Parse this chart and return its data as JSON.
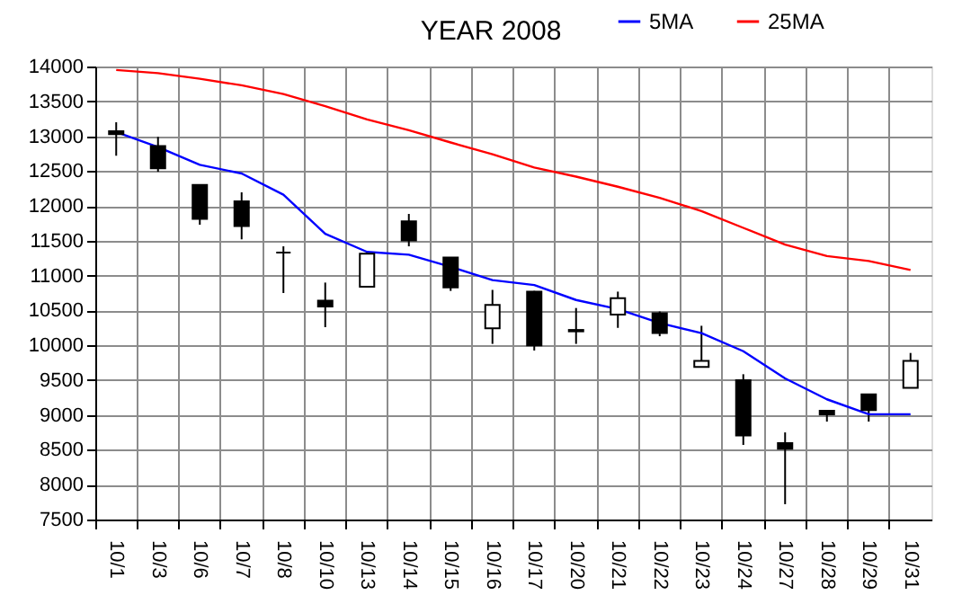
{
  "chart_data": {
    "type": "candlestick",
    "title": "YEAR 2008",
    "categories": [
      "10/1",
      "10/3",
      "10/6",
      "10/7",
      "10/8",
      "10/10",
      "10/13",
      "10/14",
      "10/15",
      "10/16",
      "10/17",
      "10/20",
      "10/21",
      "10/22",
      "10/23",
      "10/24",
      "10/27",
      "10/28",
      "10/29",
      "10/31"
    ],
    "ohlc": [
      [
        13070,
        13200,
        12720,
        13030
      ],
      [
        12860,
        12990,
        12490,
        12540
      ],
      [
        12300,
        12300,
        11730,
        11815
      ],
      [
        12065,
        12195,
        11520,
        11710
      ],
      [
        11330,
        11420,
        10750,
        11330
      ],
      [
        10640,
        10900,
        10260,
        10555
      ],
      [
        10840,
        11355,
        10840,
        11315
      ],
      [
        11780,
        11885,
        11420,
        11505
      ],
      [
        11260,
        11260,
        10780,
        10830
      ],
      [
        10245,
        10795,
        10020,
        10580
      ],
      [
        10770,
        10780,
        9925,
        10000
      ],
      [
        10220,
        10535,
        10020,
        10200
      ],
      [
        10440,
        10770,
        10250,
        10675
      ],
      [
        10460,
        10485,
        10130,
        10175
      ],
      [
        9690,
        10280,
        9690,
        9775
      ],
      [
        9500,
        9585,
        8570,
        8705
      ],
      [
        8595,
        8750,
        7720,
        8515
      ],
      [
        9060,
        9060,
        8905,
        9010
      ],
      [
        9295,
        9295,
        8905,
        9070
      ],
      [
        9390,
        9890,
        9390,
        9775
      ]
    ],
    "series": [
      {
        "name": "5MA",
        "type": "line",
        "color": "#0000ff",
        "values": [
          13060,
          12845,
          12590,
          12465,
          12160,
          11600,
          11340,
          11300,
          11125,
          10935,
          10865,
          10650,
          10520,
          10320,
          10175,
          9915,
          9525,
          9225,
          9010,
          9010
        ]
      },
      {
        "name": "25MA",
        "type": "line",
        "color": "#ff0000",
        "values": [
          13950,
          13905,
          13825,
          13730,
          13605,
          13430,
          13240,
          13085,
          12910,
          12740,
          12550,
          12420,
          12275,
          12115,
          11925,
          11685,
          11445,
          11280,
          11210,
          11080
        ]
      }
    ],
    "ylim": [
      7500,
      14000
    ],
    "yticks": [
      7500,
      8000,
      8500,
      9000,
      9500,
      10000,
      10500,
      11000,
      11500,
      12000,
      12500,
      13000,
      13500,
      14000
    ],
    "grid": true,
    "legend": "top right"
  }
}
